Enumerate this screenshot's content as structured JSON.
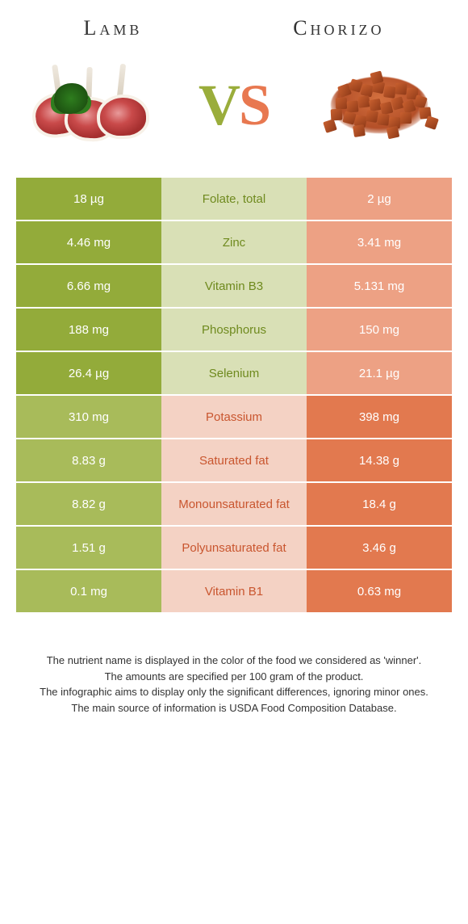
{
  "colors": {
    "green_dark": "#93ab3a",
    "green_mid": "#a8bb5a",
    "green_light": "#d9e0b6",
    "green_text": "#6f8a1e",
    "orange_dark": "#e2794f",
    "orange_light": "#eda184",
    "orange_lighter": "#f4d2c4",
    "orange_text": "#c9562f"
  },
  "header": {
    "left": "Lamb",
    "right": "Chorizo",
    "vs_v": "V",
    "vs_s": "S"
  },
  "table": {
    "rows": [
      {
        "name": "Folate, total",
        "left": "18 µg",
        "right": "2 µg",
        "winner": "left"
      },
      {
        "name": "Zinc",
        "left": "4.46 mg",
        "right": "3.41 mg",
        "winner": "left"
      },
      {
        "name": "Vitamin B3",
        "left": "6.66 mg",
        "right": "5.131 mg",
        "winner": "left"
      },
      {
        "name": "Phosphorus",
        "left": "188 mg",
        "right": "150 mg",
        "winner": "left"
      },
      {
        "name": "Selenium",
        "left": "26.4 µg",
        "right": "21.1 µg",
        "winner": "left"
      },
      {
        "name": "Potassium",
        "left": "310 mg",
        "right": "398 mg",
        "winner": "right"
      },
      {
        "name": "Saturated fat",
        "left": "8.83 g",
        "right": "14.38 g",
        "winner": "right"
      },
      {
        "name": "Monounsaturated fat",
        "left": "8.82 g",
        "right": "18.4 g",
        "winner": "right"
      },
      {
        "name": "Polyunsaturated fat",
        "left": "1.51 g",
        "right": "3.46 g",
        "winner": "right"
      },
      {
        "name": "Vitamin B1",
        "left": "0.1 mg",
        "right": "0.63 mg",
        "winner": "right"
      }
    ]
  },
  "footnotes": [
    "The nutrient name is displayed in the color of the food we considered as 'winner'.",
    "The amounts are specified per 100 gram of the product.",
    "The infographic aims to display only the significant differences, ignoring minor ones.",
    "The main source of information is USDA Food Composition Database."
  ]
}
